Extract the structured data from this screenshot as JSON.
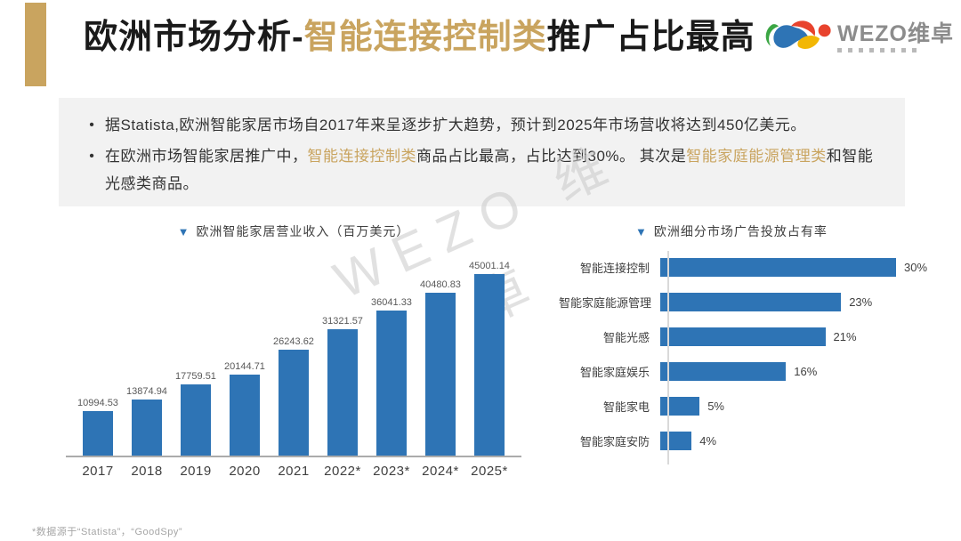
{
  "page": {
    "title": {
      "part1": "欧洲市场分析-",
      "highlight": "智能连接控制类",
      "part2": "推广占比最高"
    },
    "logo": {
      "brand": "WEZO",
      "brand_cn": "维卓"
    },
    "bullets": [
      {
        "segments": [
          {
            "text": "据Statista,欧洲智能家居市场自2017年来呈逐步扩大趋势，预计到2025年市场营收将达到450亿美元。",
            "highlight": false
          }
        ]
      },
      {
        "segments": [
          {
            "text": "在欧洲市场智能家居推广中，",
            "highlight": false
          },
          {
            "text": "智能连接控制类",
            "highlight": true
          },
          {
            "text": "商品占比最高，占比达到30%。 其次是",
            "highlight": false
          },
          {
            "text": "智能家庭能源管理类",
            "highlight": true
          },
          {
            "text": "和智能光感类商品。",
            "highlight": false
          }
        ]
      }
    ],
    "watermark": {
      "line1": "WEZO 维",
      "line2": "卓"
    },
    "footnote": "*数据源于“Statista”，“GoodSpy”"
  },
  "chart_data": [
    {
      "type": "bar",
      "orientation": "vertical",
      "marker": "▼",
      "title": "欧洲智能家居营业收入（百万美元）",
      "categories": [
        "2017",
        "2018",
        "2019",
        "2020",
        "2021",
        "2022*",
        "2023*",
        "2024*",
        "2025*"
      ],
      "values": [
        10994.53,
        13874.94,
        17759.51,
        20144.71,
        26243.62,
        31321.57,
        36041.33,
        40480.83,
        45001.14
      ],
      "value_labels": [
        "10994.53",
        "13874.94",
        "17759.51",
        "20144.71",
        "26243.62",
        "31321.57",
        "36041.33",
        "40480.83",
        "45001.14"
      ],
      "ylim": [
        0,
        45001.14
      ],
      "grid": false,
      "legend": "none",
      "bar_color": "#2E74B5"
    },
    {
      "type": "bar",
      "orientation": "horizontal",
      "marker": "▼",
      "title": "欧洲细分市场广告投放占有率",
      "categories": [
        "智能连接控制",
        "智能家庭能源管理",
        "智能光感",
        "智能家庭娱乐",
        "智能家电",
        "智能家庭安防"
      ],
      "values": [
        30,
        23,
        21,
        16,
        5,
        4
      ],
      "value_labels": [
        "30%",
        "23%",
        "21%",
        "16%",
        "5%",
        "4%"
      ],
      "xlim": [
        0,
        30
      ],
      "grid": false,
      "legend": "none",
      "bar_color": "#2E74B5"
    }
  ],
  "colors": {
    "accent_gold": "#C9A45F",
    "bar_blue": "#2E74B5",
    "panel_gray": "#F2F2F2",
    "text_dark": "#1a1a1a",
    "text_muted": "#A6A6A6"
  }
}
